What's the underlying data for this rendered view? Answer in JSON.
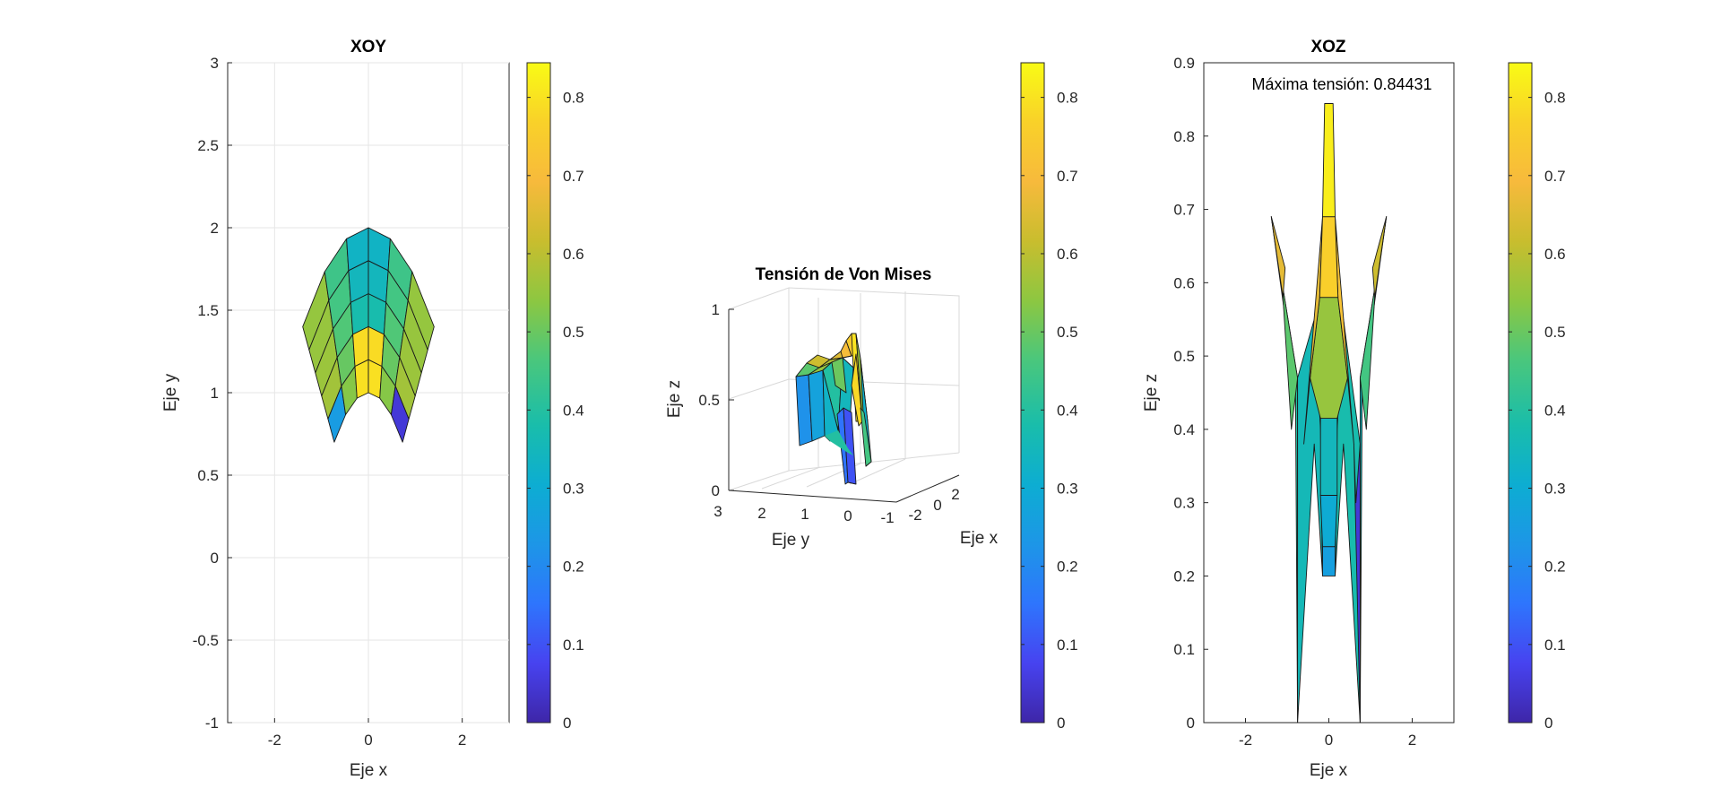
{
  "chart_data": [
    {
      "type": "surface",
      "view": "XOY (top view)",
      "title": "XOY",
      "xlabel": "Eje x",
      "ylabel": "Eje y",
      "xlim": [
        -3,
        3
      ],
      "ylim": [
        -1,
        3
      ],
      "xticks": [
        "-2",
        "0",
        "2"
      ],
      "yticks": [
        "-1",
        "-0.5",
        "0",
        "0.5",
        "1",
        "1.5",
        "2",
        "2.5",
        "3"
      ],
      "grid": true,
      "colormap": "parula",
      "colorbar": {
        "lim": [
          0,
          0.84431
        ],
        "ticks": [
          "0",
          "0.1",
          "0.2",
          "0.3",
          "0.4",
          "0.5",
          "0.6",
          "0.7",
          "0.8"
        ]
      },
      "surface_bounds": {
        "x": [
          -1.4,
          1.4
        ],
        "y": [
          0.7,
          2.0
        ]
      }
    },
    {
      "type": "surface",
      "view": "3D",
      "title": "Tensión de Von Mises",
      "xlabel": "Eje x",
      "ylabel": "Eje y",
      "zlabel": "Eje z",
      "xticks": [
        "-1",
        "-2",
        "0",
        "2"
      ],
      "yticks": [
        "3",
        "2",
        "1",
        "0"
      ],
      "zticks": [
        "0",
        "0.5",
        "1"
      ],
      "zlim": [
        0,
        1
      ],
      "grid": true,
      "colormap": "parula",
      "colorbar": {
        "lim": [
          0,
          0.84431
        ],
        "ticks": [
          "0",
          "0.1",
          "0.2",
          "0.3",
          "0.4",
          "0.5",
          "0.6",
          "0.7",
          "0.8"
        ]
      }
    },
    {
      "type": "surface",
      "view": "XOZ (side view)",
      "title": "XOZ",
      "annotation": "Máxima tensión: 0.84431",
      "max_stress": 0.84431,
      "xlabel": "Eje x",
      "ylabel": "Eje z",
      "xlim": [
        -3,
        3
      ],
      "ylim": [
        0,
        0.9
      ],
      "xticks": [
        "-2",
        "0",
        "2"
      ],
      "yticks": [
        "0",
        "0.1",
        "0.2",
        "0.3",
        "0.4",
        "0.5",
        "0.6",
        "0.7",
        "0.8",
        "0.9"
      ],
      "grid": false,
      "colormap": "parula",
      "colorbar": {
        "lim": [
          0,
          0.84431
        ],
        "ticks": [
          "0",
          "0.1",
          "0.2",
          "0.3",
          "0.4",
          "0.5",
          "0.6",
          "0.7",
          "0.8"
        ]
      }
    }
  ],
  "colors": {
    "parula_stops": [
      "#3e26a8",
      "#4743f0",
      "#2e75fd",
      "#1d96e7",
      "#0dadd2",
      "#19bdab",
      "#4ac77c",
      "#8dc741",
      "#c9bd2e",
      "#f7ba3c",
      "#f9d129",
      "#f9fb15"
    ]
  }
}
